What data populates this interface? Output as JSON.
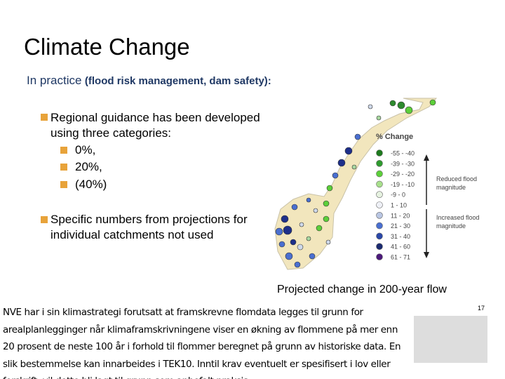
{
  "header": {
    "title": "Climate Change",
    "subtitle": {
      "main": "In practice",
      "detail": "(flood risk management, dam safety):"
    }
  },
  "bullets": [
    {
      "text": "Regional guidance has been developed",
      "text_cont": "using three categories:",
      "items": [
        "0%,",
        "20%,",
        "(40%)"
      ]
    },
    {
      "text": "Specific numbers from projections for",
      "text_cont": "individual catchments not used"
    }
  ],
  "map": {
    "legend_title": "% Change",
    "legend": [
      {
        "label": "-55 - -40",
        "color": "#1e7a1e"
      },
      {
        "label": "-39 - -30",
        "color": "#2e9b2e"
      },
      {
        "label": "-29 - -20",
        "color": "#5ccf3a"
      },
      {
        "label": "-19 - -10",
        "color": "#a8e08c"
      },
      {
        "label": "-9 - 0",
        "color": "#e6f2e0"
      },
      {
        "label": "1 - 10",
        "color": "#eef0f6"
      },
      {
        "label": "11 - 20",
        "color": "#b9c6e3"
      },
      {
        "label": "21 - 30",
        "color": "#4a6fd0"
      },
      {
        "label": "31 - 40",
        "color": "#2a47a8"
      },
      {
        "label": "41 - 60",
        "color": "#1a2a70"
      },
      {
        "label": "61 - 71",
        "color": "#4b1a7a"
      }
    ],
    "reduced": [
      "Reduced flood",
      "magnitude"
    ],
    "increased": [
      "Increased flood",
      "magnitude"
    ],
    "caption": "Projected change in 200-year flow"
  },
  "footer": {
    "page_number": "17",
    "note": "NVE har i sin klimastrategi forutsatt at framskrevne flomdata legges til grunn for arealplanlegginger når klimaframskrivningene viser en økning av flommene på mer enn 20 prosent de neste 100 år i forhold til flommer beregnet på grunn av historiske data. En slik bestemmelse kan innarbeides i TEK10. Inntil krav eventuelt er spesifisert i lov eller forskrift, vil dette bli lagt til grunn som anbefalt praksis."
  }
}
